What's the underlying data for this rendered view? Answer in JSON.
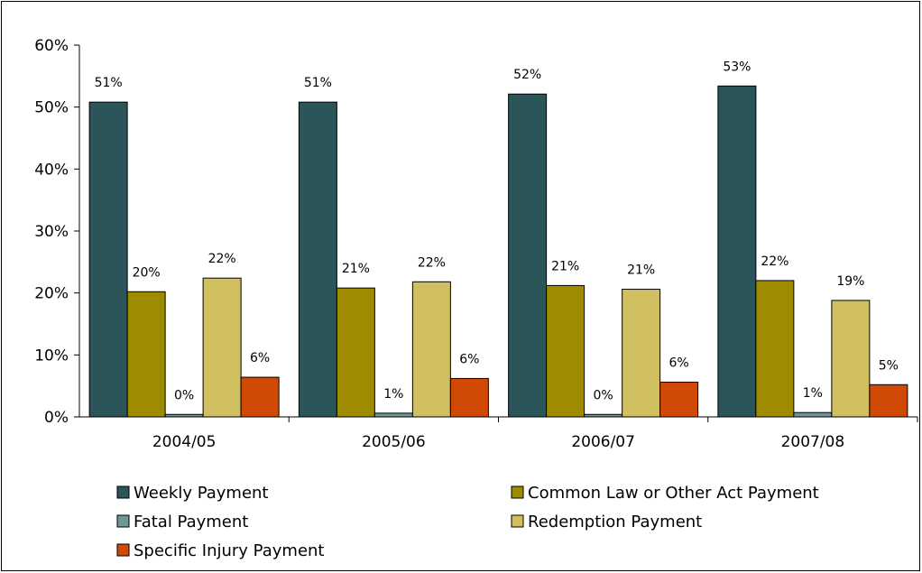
{
  "chart_data": {
    "type": "bar",
    "categories": [
      "2004/05",
      "2005/06",
      "2006/07",
      "2007/08"
    ],
    "series": [
      {
        "name": "Weekly Payment",
        "color": "#2b5558",
        "values": [
          50.8,
          50.8,
          52.1,
          53.4
        ],
        "labels": [
          "51%",
          "51%",
          "52%",
          "53%"
        ]
      },
      {
        "name": "Common Law or Other Act Payment",
        "color": "#9e8b00",
        "values": [
          20.2,
          20.8,
          21.2,
          22.0
        ],
        "labels": [
          "20%",
          "21%",
          "21%",
          "22%"
        ]
      },
      {
        "name": "Fatal Payment",
        "color": "#6f9895",
        "values": [
          0.4,
          0.6,
          0.4,
          0.7
        ],
        "labels": [
          "0%",
          "1%",
          "0%",
          "1%"
        ]
      },
      {
        "name": "Redemption Payment",
        "color": "#cfbf60",
        "values": [
          22.4,
          21.8,
          20.6,
          18.8
        ],
        "labels": [
          "22%",
          "22%",
          "21%",
          "19%"
        ]
      },
      {
        "name": "Specific Injury Payment",
        "color": "#d04a06",
        "values": [
          6.4,
          6.2,
          5.6,
          5.2
        ],
        "labels": [
          "6%",
          "6%",
          "6%",
          "5%"
        ]
      }
    ],
    "y_ticks": [
      "0%",
      "10%",
      "20%",
      "30%",
      "40%",
      "50%",
      "60%"
    ],
    "ylim": [
      0,
      60
    ],
    "legend_position": "bottom",
    "grid": false
  }
}
